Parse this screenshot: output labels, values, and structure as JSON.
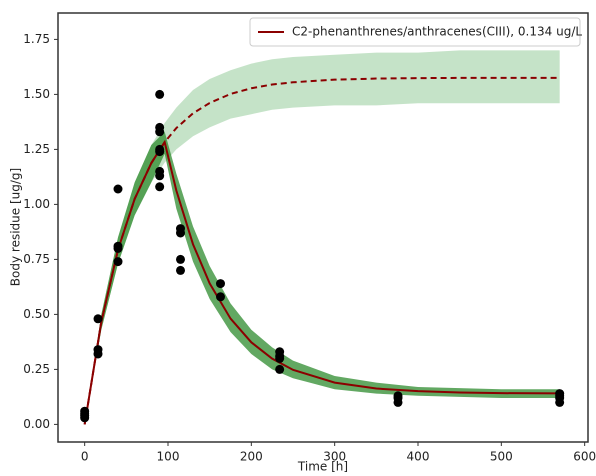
{
  "chart_data": {
    "type": "line",
    "xlabel": "Time [h]",
    "ylabel": "Body residue [ug/g]",
    "x": [
      0,
      20,
      40,
      60,
      80,
      96,
      110,
      130,
      150,
      175,
      200,
      225,
      250,
      300,
      350,
      400,
      450,
      500,
      570
    ],
    "series": [
      {
        "name": "C2-phenanthrenes/anthracenes(CIII), 0.134 ug/L",
        "color": "#8b0000",
        "linestyle": "solid",
        "values": [
          0,
          0.466,
          0.794,
          1.025,
          1.188,
          1.283,
          1.063,
          0.819,
          0.641,
          0.481,
          0.373,
          0.299,
          0.248,
          0.19,
          0.163,
          0.151,
          0.145,
          0.142,
          0.141
        ]
      },
      {
        "color": "#8b0000",
        "linestyle": "dashed",
        "values": [
          0,
          0.466,
          0.794,
          1.025,
          1.188,
          1.283,
          1.347,
          1.414,
          1.461,
          1.502,
          1.528,
          1.545,
          1.555,
          1.567,
          1.572,
          1.574,
          1.575,
          1.575,
          1.575
        ]
      }
    ],
    "bands": [
      {
        "color": "#2e9a3a",
        "opacity": 0.28,
        "upper": [
          0,
          0.5,
          0.85,
          1.1,
          1.27,
          1.37,
          1.44,
          1.52,
          1.57,
          1.61,
          1.64,
          1.66,
          1.67,
          1.68,
          1.69,
          1.69,
          1.7,
          1.7,
          1.7
        ],
        "lower": [
          0,
          0.43,
          0.73,
          0.95,
          1.1,
          1.19,
          1.25,
          1.31,
          1.35,
          1.39,
          1.41,
          1.43,
          1.44,
          1.45,
          1.45,
          1.46,
          1.46,
          1.46,
          1.46
        ]
      },
      {
        "color": "#2e8b2e",
        "opacity": 0.75,
        "upper": [
          0,
          0.5,
          0.85,
          1.1,
          1.27,
          1.33,
          1.14,
          0.9,
          0.72,
          0.55,
          0.43,
          0.35,
          0.29,
          0.22,
          0.19,
          0.17,
          0.165,
          0.16,
          0.16
        ],
        "lower": [
          0,
          0.43,
          0.73,
          0.95,
          1.1,
          1.23,
          0.98,
          0.74,
          0.57,
          0.42,
          0.32,
          0.25,
          0.21,
          0.16,
          0.14,
          0.13,
          0.125,
          0.12,
          0.12
        ]
      }
    ],
    "points": {
      "color": "#000000",
      "x": [
        0,
        0,
        0,
        0,
        16,
        16,
        16,
        40,
        40,
        40,
        40,
        90,
        90,
        90,
        90,
        90,
        90,
        90,
        90,
        115,
        115,
        115,
        115,
        163,
        163,
        234,
        234,
        234,
        234,
        376,
        376,
        376,
        570,
        570,
        570,
        570
      ],
      "y": [
        0.03,
        0.04,
        0.05,
        0.06,
        0.48,
        0.32,
        0.34,
        1.07,
        0.81,
        0.8,
        0.74,
        1.5,
        1.35,
        1.33,
        1.25,
        1.24,
        1.15,
        1.13,
        1.08,
        0.89,
        0.87,
        0.75,
        0.7,
        0.64,
        0.58,
        0.33,
        0.31,
        0.3,
        0.25,
        0.13,
        0.12,
        0.1,
        0.14,
        0.13,
        0.12,
        0.1
      ]
    },
    "xlim": [
      -32,
      604
    ],
    "ylim": [
      -0.08,
      1.87
    ],
    "xticks": [
      0,
      100,
      200,
      300,
      400,
      500,
      600
    ],
    "yticks": [
      {
        "value": 0,
        "label": "0.00"
      },
      0.25,
      {
        "value": 0.5,
        "label": "0.50"
      },
      0.75,
      {
        "value": 1,
        "label": "1.00"
      },
      1.25,
      {
        "value": 1.5,
        "label": "1.50"
      },
      1.75
    ],
    "legend": "upper right",
    "grid": false
  }
}
